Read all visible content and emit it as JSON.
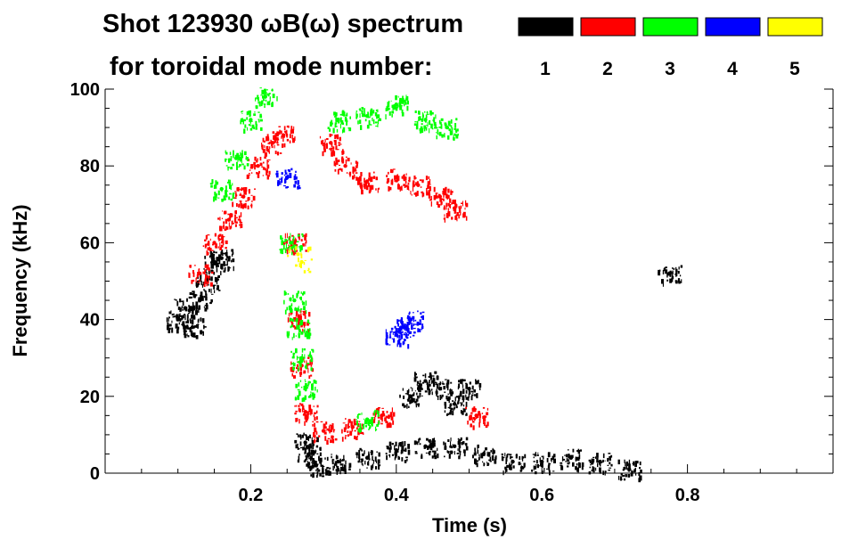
{
  "chart_data": {
    "type": "scatter",
    "title_line1": "Shot 123930 ωB(ω) spectrum",
    "title_line2": "for toroidal mode number:",
    "xlabel": "Time (s)",
    "ylabel": "Frequency (kHz)",
    "xlim": [
      0.0,
      1.0
    ],
    "ylim": [
      0,
      100
    ],
    "x_ticks": [
      0.2,
      0.4,
      0.6,
      0.8
    ],
    "x_tick_labels": [
      "0.2",
      "0.4",
      "0.6",
      "0.8"
    ],
    "y_ticks": [
      0,
      20,
      40,
      60,
      80,
      100
    ],
    "y_tick_labels": [
      "0",
      "20",
      "40",
      "60",
      "80",
      "100"
    ],
    "grid": false,
    "legend_placement": "top-right",
    "series": [
      {
        "name": "1",
        "color": "#000000",
        "points": [
          [
            0.1,
            40
          ],
          [
            0.11,
            43
          ],
          [
            0.12,
            38
          ],
          [
            0.13,
            45
          ],
          [
            0.14,
            50
          ],
          [
            0.15,
            55
          ],
          [
            0.16,
            56
          ],
          [
            0.275,
            8
          ],
          [
            0.28,
            5
          ],
          [
            0.29,
            2
          ],
          [
            0.32,
            3
          ],
          [
            0.36,
            4
          ],
          [
            0.4,
            6
          ],
          [
            0.44,
            7
          ],
          [
            0.48,
            7
          ],
          [
            0.52,
            5
          ],
          [
            0.56,
            3
          ],
          [
            0.6,
            3
          ],
          [
            0.64,
            4
          ],
          [
            0.68,
            3
          ],
          [
            0.72,
            1
          ],
          [
            0.42,
            20
          ],
          [
            0.44,
            24
          ],
          [
            0.46,
            22
          ],
          [
            0.48,
            18
          ],
          [
            0.5,
            22
          ],
          [
            0.775,
            52
          ]
        ]
      },
      {
        "name": "2",
        "color": "#ff0000",
        "points": [
          [
            0.13,
            52
          ],
          [
            0.15,
            60
          ],
          [
            0.17,
            66
          ],
          [
            0.19,
            72
          ],
          [
            0.21,
            80
          ],
          [
            0.23,
            86
          ],
          [
            0.245,
            88
          ],
          [
            0.26,
            60
          ],
          [
            0.265,
            40
          ],
          [
            0.27,
            28
          ],
          [
            0.275,
            16
          ],
          [
            0.3,
            11
          ],
          [
            0.34,
            12
          ],
          [
            0.38,
            15
          ],
          [
            0.31,
            86
          ],
          [
            0.33,
            80
          ],
          [
            0.36,
            76
          ],
          [
            0.4,
            77
          ],
          [
            0.43,
            75
          ],
          [
            0.46,
            72
          ],
          [
            0.48,
            69
          ],
          [
            0.51,
            15
          ]
        ]
      },
      {
        "name": "3",
        "color": "#00ff00",
        "points": [
          [
            0.16,
            74
          ],
          [
            0.18,
            82
          ],
          [
            0.2,
            92
          ],
          [
            0.22,
            98
          ],
          [
            0.255,
            60
          ],
          [
            0.26,
            45
          ],
          [
            0.265,
            38
          ],
          [
            0.27,
            30
          ],
          [
            0.275,
            22
          ],
          [
            0.32,
            92
          ],
          [
            0.36,
            93
          ],
          [
            0.4,
            96
          ],
          [
            0.44,
            92
          ],
          [
            0.47,
            90
          ],
          [
            0.36,
            14
          ]
        ]
      },
      {
        "name": "4",
        "color": "#0000ff",
        "points": [
          [
            0.25,
            77
          ],
          [
            0.4,
            36
          ],
          [
            0.41,
            38
          ],
          [
            0.42,
            40
          ]
        ]
      },
      {
        "name": "5",
        "color": "#ffff00",
        "points": [
          [
            0.265,
            57
          ],
          [
            0.27,
            55
          ]
        ]
      }
    ]
  }
}
